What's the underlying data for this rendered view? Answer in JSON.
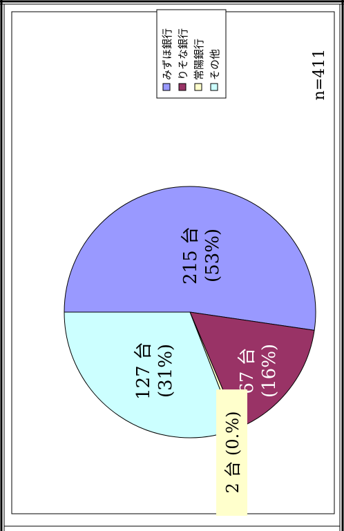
{
  "chart_data": {
    "type": "pie",
    "orientation": "rotated 90 degrees counter-clockwise",
    "total_label": "n=411",
    "slices": [
      {
        "name": "みずほ銀行",
        "value": 215,
        "percent": 53,
        "count_label": "215 台",
        "pct_label": "(53%)",
        "color": "#9999ff"
      },
      {
        "name": "りそな銀行",
        "value": 67,
        "percent": 16,
        "count_label": "67 台",
        "pct_label": "(16%)",
        "color": "#993366"
      },
      {
        "name": "常陽銀行",
        "value": 2,
        "percent": 0,
        "combined_label": "2 台 (0.%)",
        "color": "#ffffcc"
      },
      {
        "name": "その他",
        "value": 127,
        "percent": 31,
        "count_label": "127 台",
        "pct_label": "(31%)",
        "color": "#ccffff"
      }
    ],
    "legend_placement": "top-right (rotated)"
  }
}
